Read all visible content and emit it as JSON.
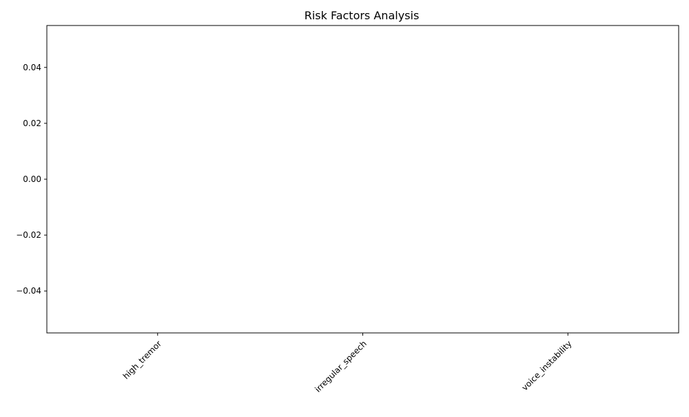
{
  "chart_data": {
    "type": "bar",
    "title": "Risk Factors Analysis",
    "xlabel": "",
    "ylabel": "",
    "categories": [
      "high_tremor",
      "irregular_speech",
      "voice_instability"
    ],
    "values": [
      0,
      0,
      0
    ],
    "ylim": [
      -0.055,
      0.055
    ],
    "y_ticks": [
      -0.04,
      -0.02,
      0.0,
      0.02,
      0.04
    ],
    "y_tick_labels": [
      "−0.04",
      "−0.02",
      "0.00",
      "0.02",
      "0.04"
    ],
    "x_tick_rotation_deg": 45,
    "grid": false,
    "legend": "none"
  }
}
